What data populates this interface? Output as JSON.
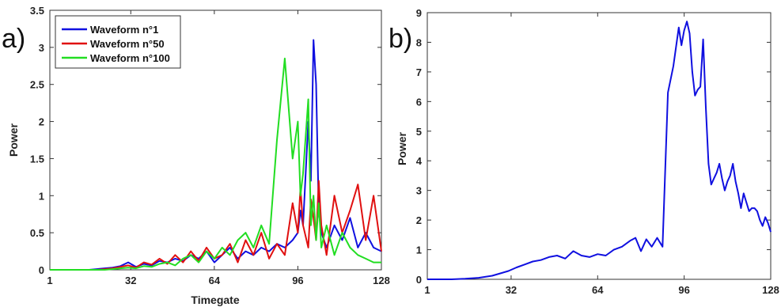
{
  "panels": [
    {
      "label": "a)"
    },
    {
      "label": "b)"
    }
  ],
  "colors": {
    "blue": "#1010e0",
    "red": "#e01010",
    "green": "#22dd22"
  },
  "chart_data": [
    {
      "type": "line",
      "xlabel": "Timegate",
      "ylabel": "Power",
      "xlim": [
        1,
        128
      ],
      "ylim": [
        0,
        3.5
      ],
      "xticks": [
        1,
        32,
        64,
        96,
        128
      ],
      "yticks": [
        0,
        0.5,
        1,
        1.5,
        2,
        2.5,
        3,
        3.5
      ],
      "yticklabels": [
        "0",
        "0.5",
        "1",
        "1.5",
        "2",
        "2.5",
        "3",
        "3.5"
      ],
      "grid": false,
      "legend": "top-left",
      "x": [
        1,
        4,
        7,
        10,
        13,
        16,
        19,
        22,
        25,
        28,
        31,
        34,
        37,
        40,
        43,
        46,
        49,
        52,
        55,
        58,
        61,
        64,
        67,
        70,
        73,
        76,
        79,
        82,
        85,
        88,
        91,
        94,
        96,
        97,
        98,
        100,
        101,
        102,
        103,
        104,
        105,
        107,
        110,
        113,
        116,
        119,
        122,
        125,
        128
      ],
      "series": [
        {
          "name": "Waveform n°1",
          "color": "blue",
          "values": [
            0,
            0,
            0,
            0,
            0,
            0,
            0.01,
            0.02,
            0.03,
            0.05,
            0.1,
            0.04,
            0.08,
            0.06,
            0.12,
            0.1,
            0.15,
            0.12,
            0.2,
            0.15,
            0.25,
            0.1,
            0.2,
            0.3,
            0.15,
            0.25,
            0.2,
            0.3,
            0.25,
            0.35,
            0.3,
            0.4,
            0.5,
            0.8,
            0.6,
            2.0,
            1.2,
            3.1,
            2.5,
            0.8,
            0.5,
            0.3,
            0.6,
            0.4,
            0.7,
            0.3,
            0.5,
            0.3,
            0.25
          ]
        },
        {
          "name": "Waveform n°50",
          "color": "red",
          "values": [
            0,
            0,
            0,
            0,
            0,
            0,
            0,
            0.01,
            0.02,
            0.04,
            0.06,
            0.03,
            0.1,
            0.07,
            0.15,
            0.08,
            0.2,
            0.1,
            0.25,
            0.12,
            0.3,
            0.15,
            0.2,
            0.35,
            0.1,
            0.4,
            0.2,
            0.5,
            0.15,
            0.35,
            0.2,
            0.9,
            0.5,
            1.1,
            0.6,
            0.3,
            0.95,
            0.7,
            0.4,
            1.2,
            0.6,
            0.2,
            1.0,
            0.5,
            0.8,
            1.15,
            0.4,
            1.0,
            0.25
          ]
        },
        {
          "name": "Waveform n°100",
          "color": "green",
          "values": [
            0,
            0,
            0,
            0,
            0,
            0,
            0,
            0,
            0.01,
            0.02,
            0.03,
            0.02,
            0.05,
            0.04,
            0.08,
            0.1,
            0.06,
            0.15,
            0.2,
            0.1,
            0.25,
            0.15,
            0.3,
            0.2,
            0.4,
            0.5,
            0.3,
            0.6,
            0.35,
            1.75,
            2.85,
            1.5,
            2.0,
            1.0,
            1.3,
            2.3,
            0.6,
            1.0,
            0.4,
            0.9,
            0.3,
            0.6,
            0.2,
            0.5,
            0.3,
            0.2,
            0.15,
            0.1,
            0.1
          ]
        }
      ]
    },
    {
      "type": "line",
      "xlabel": "",
      "ylabel": "Power",
      "xlim": [
        1,
        128
      ],
      "ylim": [
        0,
        9
      ],
      "xticks": [
        1,
        32,
        64,
        96,
        128
      ],
      "yticks": [
        0,
        1,
        2,
        3,
        4,
        5,
        6,
        7,
        8,
        9
      ],
      "yticklabels": [
        "0",
        "1",
        "2",
        "3",
        "4",
        "5",
        "6",
        "7",
        "8",
        "9"
      ],
      "grid": false,
      "x": [
        1,
        5,
        10,
        15,
        20,
        25,
        28,
        31,
        34,
        37,
        40,
        43,
        46,
        49,
        52,
        55,
        58,
        61,
        64,
        67,
        70,
        73,
        76,
        78,
        80,
        82,
        84,
        86,
        88,
        90,
        92,
        94,
        95,
        96,
        97,
        98,
        99,
        100,
        101,
        102,
        103,
        104,
        105,
        106,
        107,
        108,
        109,
        110,
        111,
        112,
        113,
        114,
        115,
        116,
        117,
        118,
        119,
        120,
        121,
        122,
        123,
        124,
        125,
        126,
        127,
        128
      ],
      "series": [
        {
          "name": "",
          "color": "blue",
          "values": [
            0,
            0,
            0,
            0.02,
            0.05,
            0.12,
            0.2,
            0.28,
            0.4,
            0.5,
            0.6,
            0.65,
            0.75,
            0.8,
            0.7,
            0.95,
            0.8,
            0.75,
            0.85,
            0.8,
            1.0,
            1.1,
            1.3,
            1.4,
            0.95,
            1.35,
            1.1,
            1.4,
            1.1,
            6.3,
            7.2,
            8.5,
            7.9,
            8.4,
            8.7,
            8.3,
            7.0,
            6.2,
            6.4,
            6.5,
            8.1,
            5.8,
            3.9,
            3.2,
            3.4,
            3.6,
            3.9,
            3.4,
            3.0,
            3.3,
            3.5,
            3.9,
            3.3,
            2.9,
            2.4,
            2.9,
            2.6,
            2.3,
            2.4,
            2.4,
            2.3,
            2.0,
            1.8,
            2.1,
            1.9,
            1.6
          ]
        }
      ]
    }
  ]
}
